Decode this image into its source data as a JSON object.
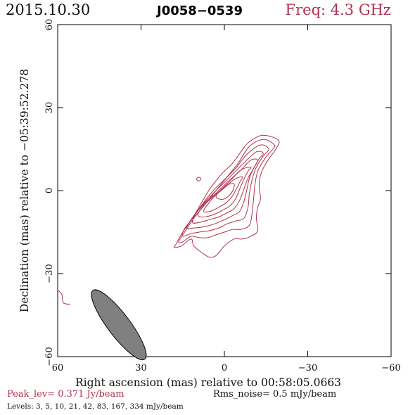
{
  "header": {
    "date": "2015.10.30",
    "source": "J0058−0539",
    "frequency": "Freq: 4.3 GHz"
  },
  "footer": {
    "peak": "Peak_lev=  0.371 Jy/beam",
    "rms": "Rms_noise=  0.5 mJy/beam",
    "levels": "Levels:   3,   5,  10,  21,  42,  83, 167, 334 mJy/beam"
  },
  "colors": {
    "contour": "#b0324f",
    "beam_fill": "#808080",
    "axis": "#000000"
  },
  "chart_data": {
    "type": "contour",
    "xlabel": "Right ascension (mas) relative to 00:58:05.0663",
    "ylabel": "Declination (mas) relative to −05:39:52.278",
    "xlim": [
      60,
      -60
    ],
    "ylim": [
      -60,
      60
    ],
    "x_ticks": [
      "60",
      "30",
      "0",
      "−30",
      "−60"
    ],
    "y_ticks": [
      "−60",
      "−30",
      "0",
      "30",
      "60"
    ],
    "contour_levels_mJy": [
      3,
      5,
      10,
      21,
      42,
      83,
      167,
      334
    ],
    "peak_Jy_per_beam": 0.371,
    "rms_mJy_per_beam": 0.5,
    "beam": {
      "center": [
        38,
        -48.5
      ],
      "major_mas": 15.5,
      "minor_mas": 4,
      "pa_deg": -37
    },
    "contours": [
      [
        [
          -19.5,
          18.2
        ],
        [
          -14,
          20
        ],
        [
          -9.5,
          18
        ],
        [
          -7,
          15.5
        ],
        [
          -3,
          10
        ],
        [
          1,
          6
        ],
        [
          5,
          1
        ],
        [
          8,
          -4
        ],
        [
          11.5,
          -10
        ],
        [
          15,
          -15
        ],
        [
          17.5,
          -19.5
        ],
        [
          18,
          -20.5
        ],
        [
          15.5,
          -20
        ],
        [
          12,
          -17.5
        ],
        [
          11,
          -20
        ],
        [
          8,
          -22.5
        ],
        [
          5.5,
          -24
        ],
        [
          3,
          -23.5
        ],
        [
          0,
          -20
        ],
        [
          -3.5,
          -17.5
        ],
        [
          -6.5,
          -17.5
        ],
        [
          -9.5,
          -16.5
        ],
        [
          -12,
          -14.5
        ],
        [
          -11.5,
          -10
        ],
        [
          -12,
          -6
        ],
        [
          -13,
          -3
        ],
        [
          -12.5,
          2.5
        ],
        [
          -13.5,
          7
        ],
        [
          -16,
          11.5
        ],
        [
          -18.5,
          15
        ]
      ],
      [
        [
          -18,
          16.5
        ],
        [
          -14,
          18.5
        ],
        [
          -9,
          16
        ],
        [
          -5,
          10
        ],
        [
          -1,
          5
        ],
        [
          3,
          0
        ],
        [
          7,
          -5
        ],
        [
          11,
          -10
        ],
        [
          14,
          -14.5
        ],
        [
          16.5,
          -18.5
        ],
        [
          15,
          -18.5
        ],
        [
          12,
          -16.5
        ],
        [
          9,
          -17
        ],
        [
          6,
          -17
        ],
        [
          3,
          -16
        ],
        [
          0,
          -15
        ],
        [
          -3,
          -14
        ],
        [
          -6,
          -14
        ],
        [
          -9,
          -12.5
        ],
        [
          -10,
          -8
        ],
        [
          -10.5,
          -3
        ],
        [
          -11,
          2
        ],
        [
          -12,
          7
        ],
        [
          -14.5,
          11.5
        ],
        [
          -17,
          14.5
        ]
      ],
      [
        [
          -16,
          15
        ],
        [
          -13,
          16.5
        ],
        [
          -8,
          13
        ],
        [
          -4,
          8
        ],
        [
          0,
          4
        ],
        [
          4,
          0
        ],
        [
          8,
          -5
        ],
        [
          11.5,
          -10
        ],
        [
          14.5,
          -14
        ],
        [
          15,
          -16.5
        ],
        [
          12,
          -15.5
        ],
        [
          9,
          -15
        ],
        [
          5.5,
          -14.5
        ],
        [
          2,
          -13.5
        ],
        [
          -1,
          -12
        ],
        [
          -4,
          -11
        ],
        [
          -7,
          -10
        ],
        [
          -8.5,
          -6
        ],
        [
          -9,
          -1
        ],
        [
          -10,
          4
        ],
        [
          -11.5,
          8.5
        ],
        [
          -14,
          12.5
        ]
      ],
      [
        [
          -14,
          13.5
        ],
        [
          -11.5,
          14
        ],
        [
          -7,
          10
        ],
        [
          -3,
          6
        ],
        [
          1,
          2
        ],
        [
          5,
          -2
        ],
        [
          9,
          -6.5
        ],
        [
          12,
          -10.5
        ],
        [
          13.5,
          -13.5
        ],
        [
          11,
          -13.5
        ],
        [
          7,
          -13
        ],
        [
          3.5,
          -12
        ],
        [
          0,
          -10.5
        ],
        [
          -3,
          -9
        ],
        [
          -5.5,
          -7.5
        ],
        [
          -7,
          -4
        ],
        [
          -8,
          0
        ],
        [
          -9,
          4.5
        ],
        [
          -10.5,
          8
        ],
        [
          -12.5,
          11.5
        ]
      ],
      [
        [
          -12,
          11
        ],
        [
          -9.5,
          11
        ],
        [
          -5.5,
          7
        ],
        [
          -1,
          3
        ],
        [
          3,
          -1
        ],
        [
          7,
          -4.5
        ],
        [
          10,
          -8
        ],
        [
          11.5,
          -11.5
        ],
        [
          9,
          -11.5
        ],
        [
          5.5,
          -10.5
        ],
        [
          2,
          -9.5
        ],
        [
          -1,
          -8
        ],
        [
          -3.5,
          -6.5
        ],
        [
          -5.5,
          -3.5
        ],
        [
          -7,
          0.5
        ],
        [
          -8.5,
          4.5
        ],
        [
          -10.5,
          8
        ]
      ],
      [
        [
          -9.5,
          8.5
        ],
        [
          -6,
          7.5
        ],
        [
          -2.5,
          4
        ],
        [
          1.5,
          0
        ],
        [
          5,
          -3
        ],
        [
          8,
          -6
        ],
        [
          9.5,
          -9
        ],
        [
          7,
          -9.5
        ],
        [
          3.5,
          -8.5
        ],
        [
          0.5,
          -7
        ],
        [
          -2,
          -5.5
        ],
        [
          -4,
          -3
        ],
        [
          -5.5,
          0.5
        ],
        [
          -7,
          4
        ],
        [
          -8.5,
          7
        ]
      ],
      [
        [
          -6.5,
          5
        ],
        [
          -3.5,
          4
        ],
        [
          0,
          1
        ],
        [
          3.5,
          -2
        ],
        [
          6,
          -5
        ],
        [
          7.5,
          -7.5
        ],
        [
          5,
          -7.5
        ],
        [
          2,
          -6
        ],
        [
          -0.5,
          -4.5
        ],
        [
          -2.5,
          -2.5
        ],
        [
          -4,
          0
        ],
        [
          -5.5,
          3
        ]
      ],
      [
        [
          -3.5,
          2.5
        ],
        [
          -1,
          2
        ],
        [
          1.5,
          0
        ],
        [
          3,
          -2
        ],
        [
          2,
          -3
        ],
        [
          0,
          -3
        ],
        [
          -1.5,
          -2
        ],
        [
          -3,
          0
        ]
      ]
    ],
    "blobs": [
      [
        [
          8.5,
          4.5
        ],
        [
          9.5,
          4.8
        ],
        [
          10,
          4
        ],
        [
          9,
          3.5
        ]
      ]
    ],
    "open_curves": [
      [
        [
          60,
          -36
        ],
        [
          58.5,
          -37.5
        ],
        [
          58,
          -40.5
        ],
        [
          56.5,
          -41
        ],
        [
          55.5,
          -41
        ]
      ]
    ]
  }
}
